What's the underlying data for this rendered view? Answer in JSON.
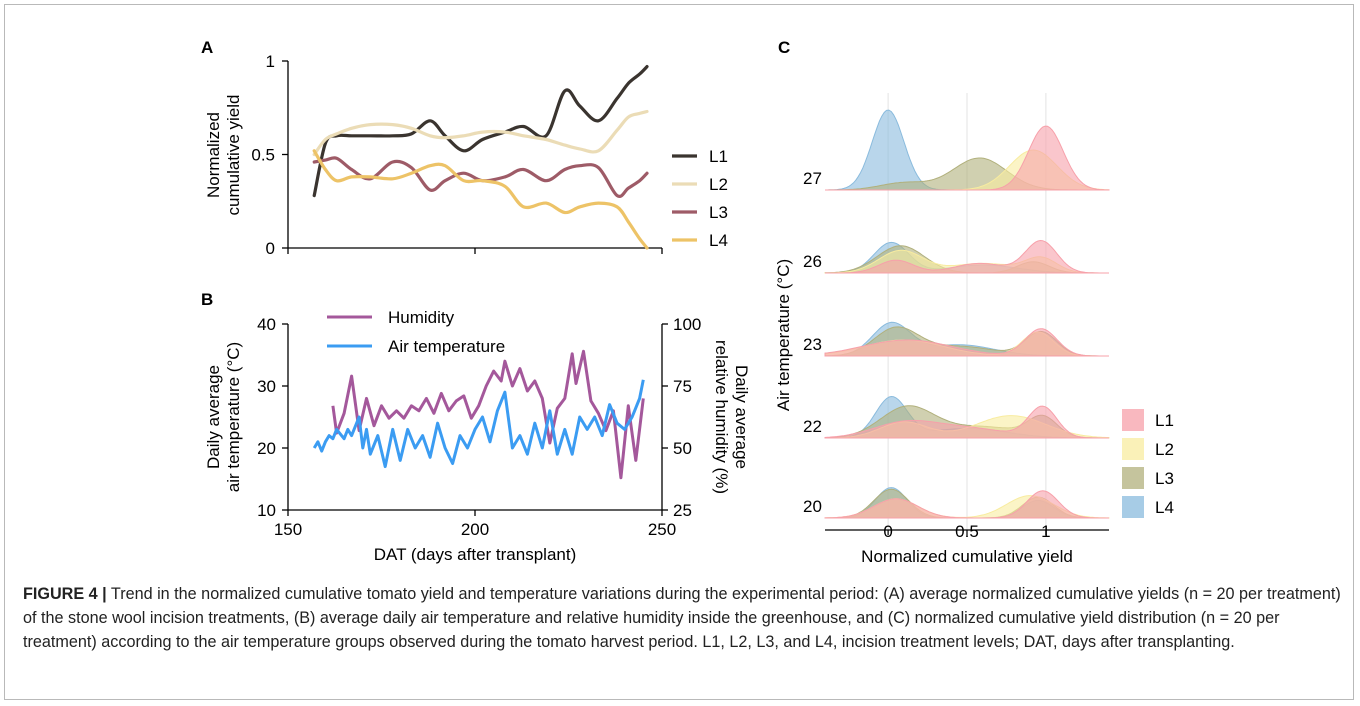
{
  "caption": {
    "figure_label": "FIGURE 4 |",
    "text": "Trend in the normalized cumulative tomato yield and temperature variations during the experimental period: (A) average normalized cumulative yields (n = 20 per treatment) of the stone wool incision treatments, (B) average daily air temperature and relative humidity inside the greenhouse, and (C) normalized cumulative yield distribution (n = 20 per treatment) according to the air temperature groups observed during the tomato harvest period. L1, L2, L3, and L4, incision treatment levels; DAT, days after transplanting."
  },
  "chart_data": [
    {
      "panel": "A",
      "type": "line",
      "ylabel": [
        "Normalized",
        "cumulative yield"
      ],
      "xlim": [
        150,
        250
      ],
      "ylim": [
        0,
        1
      ],
      "yticks": [
        "0",
        "0.5",
        "1"
      ],
      "x": [
        157,
        160,
        163,
        167,
        172,
        178,
        183,
        188,
        192,
        197,
        202,
        208,
        213,
        219,
        224,
        228,
        233,
        238,
        241,
        244,
        246
      ],
      "series": [
        {
          "name": "L1",
          "color": "#3a342f",
          "values": [
            0.28,
            0.56,
            0.6,
            0.6,
            0.6,
            0.6,
            0.61,
            0.68,
            0.6,
            0.52,
            0.58,
            0.62,
            0.65,
            0.6,
            0.84,
            0.76,
            0.68,
            0.8,
            0.88,
            0.93,
            0.97
          ]
        },
        {
          "name": "L2",
          "color": "#ebdcb6",
          "values": [
            0.5,
            0.58,
            0.61,
            0.64,
            0.66,
            0.66,
            0.64,
            0.6,
            0.59,
            0.6,
            0.62,
            0.62,
            0.6,
            0.58,
            0.55,
            0.53,
            0.52,
            0.63,
            0.7,
            0.72,
            0.73
          ]
        },
        {
          "name": "L3",
          "color": "#9e5b67",
          "values": [
            0.46,
            0.47,
            0.48,
            0.42,
            0.37,
            0.46,
            0.43,
            0.31,
            0.36,
            0.4,
            0.36,
            0.38,
            0.42,
            0.36,
            0.42,
            0.44,
            0.43,
            0.28,
            0.32,
            0.36,
            0.4
          ]
        },
        {
          "name": "L4",
          "color": "#edc367",
          "values": [
            0.52,
            0.42,
            0.36,
            0.38,
            0.38,
            0.37,
            0.4,
            0.44,
            0.44,
            0.36,
            0.36,
            0.33,
            0.22,
            0.24,
            0.19,
            0.22,
            0.24,
            0.22,
            0.14,
            0.05,
            0.0
          ]
        }
      ]
    },
    {
      "panel": "B",
      "type": "line",
      "xlabel": "DAT (days after transplant)",
      "ylabel": [
        "Daily average",
        "air temperature (°C)"
      ],
      "y2label": [
        "Daily average",
        "relative humidity (%)"
      ],
      "xlim": [
        150,
        250
      ],
      "ylim": [
        10,
        40
      ],
      "y2lim": [
        25,
        100
      ],
      "xticks": [
        "150",
        "200",
        "250"
      ],
      "yticks": [
        "10",
        "20",
        "30",
        "40"
      ],
      "y2ticks": [
        "25",
        "50",
        "75",
        "100"
      ],
      "series": [
        {
          "name": "Humidity",
          "axis": "right",
          "color": "#a4589b",
          "x": [
            162,
            163,
            165,
            167,
            169,
            171,
            173,
            175,
            177,
            179,
            181,
            183,
            185,
            187,
            189,
            191,
            193,
            195,
            197,
            199,
            201,
            203,
            205,
            207,
            208,
            210,
            212,
            214,
            216,
            218,
            220,
            222,
            224,
            226,
            227,
            229,
            231,
            233,
            235,
            237,
            239,
            241,
            243,
            245
          ],
          "values": [
            67,
            56,
            64,
            79,
            57,
            70,
            59,
            67,
            62,
            65,
            62,
            67,
            65,
            70,
            64,
            72,
            65,
            69,
            71,
            62,
            67,
            75,
            81,
            77,
            85,
            75,
            82,
            73,
            77,
            70,
            52,
            66,
            70,
            88,
            76,
            89,
            69,
            64,
            57,
            65,
            38,
            67,
            45,
            70
          ]
        },
        {
          "name": "Air temperature",
          "axis": "left",
          "color": "#3b9cf2",
          "x": [
            157,
            158,
            159,
            160,
            161,
            162,
            163,
            165,
            166,
            167,
            169,
            170,
            171,
            172,
            174,
            176,
            178,
            180,
            182,
            184,
            186,
            188,
            190,
            192,
            194,
            196,
            198,
            200,
            202,
            204,
            206,
            208,
            210,
            212,
            214,
            216,
            218,
            220,
            222,
            224,
            226,
            228,
            230,
            232,
            234,
            236,
            238,
            240,
            242,
            244,
            245
          ],
          "values": [
            20,
            21,
            19.5,
            21,
            22,
            21.5,
            23,
            21.5,
            23,
            22,
            25,
            20,
            23,
            19,
            22,
            17,
            23,
            18,
            23,
            20,
            22,
            18.5,
            24,
            20,
            17.5,
            22,
            20,
            23,
            25,
            21,
            26,
            29,
            20,
            22,
            19,
            24,
            20,
            26,
            19,
            23,
            19,
            25,
            23,
            25,
            22,
            27,
            24,
            23,
            25,
            28,
            31
          ]
        }
      ]
    },
    {
      "panel": "C",
      "type": "area",
      "xlabel": "Normalized cumulative yield",
      "ylabel": "Air temperature (°C)",
      "xlim": [
        -0.4,
        1.4
      ],
      "xticks": [
        "0",
        "0.5",
        "1"
      ],
      "legend": {
        "position": "bottom-right",
        "entries": [
          {
            "name": "L1",
            "color": "#f7a0aa"
          },
          {
            "name": "L2",
            "color": "#f8eca0"
          },
          {
            "name": "L3",
            "color": "#b1b07c"
          },
          {
            "name": "L4",
            "color": "#8abbdd"
          }
        ]
      },
      "groups": [
        {
          "temperature": "27",
          "series": {
            "L1": [
              [
                1.0,
                0.11,
                0.8
              ]
            ],
            "L2": [
              [
                0.92,
                0.15,
                0.5
              ]
            ],
            "L3": [
              [
                0.58,
                0.17,
                0.4
              ],
              [
                0.1,
                0.15,
                0.09
              ]
            ],
            "L4": [
              [
                0.0,
                0.1,
                1.0
              ]
            ]
          }
        },
        {
          "temperature": "26",
          "series": {
            "L1": [
              [
                0.97,
                0.1,
                0.4
              ],
              [
                0.58,
                0.16,
                0.12
              ],
              [
                0.05,
                0.11,
                0.16
              ]
            ],
            "L2": [
              [
                0.08,
                0.14,
                0.28
              ],
              [
                0.6,
                0.2,
                0.12
              ],
              [
                0.97,
                0.1,
                0.18
              ]
            ],
            "L3": [
              [
                0.08,
                0.15,
                0.34
              ],
              [
                0.92,
                0.1,
                0.14
              ]
            ],
            "L4": [
              [
                0.02,
                0.11,
                0.38
              ],
              [
                0.6,
                0.22,
                0.1
              ]
            ]
          }
        },
        {
          "temperature": "23",
          "series": {
            "L1": [
              [
                0.97,
                0.1,
                0.34
              ],
              [
                0.12,
                0.28,
                0.2
              ]
            ],
            "L2": [
              [
                0.95,
                0.1,
                0.3
              ],
              [
                0.1,
                0.25,
                0.2
              ]
            ],
            "L3": [
              [
                0.05,
                0.14,
                0.34
              ],
              [
                0.45,
                0.22,
                0.12
              ],
              [
                0.97,
                0.1,
                0.3
              ]
            ],
            "L4": [
              [
                0.02,
                0.12,
                0.4
              ],
              [
                0.45,
                0.22,
                0.14
              ]
            ]
          }
        },
        {
          "temperature": "22",
          "series": {
            "L1": [
              [
                0.98,
                0.09,
                0.38
              ],
              [
                0.1,
                0.2,
                0.18
              ],
              [
                0.5,
                0.25,
                0.12
              ]
            ],
            "L2": [
              [
                0.78,
                0.22,
                0.28
              ],
              [
                0.1,
                0.15,
                0.2
              ]
            ],
            "L3": [
              [
                0.12,
                0.17,
                0.38
              ],
              [
                0.6,
                0.25,
                0.14
              ],
              [
                0.98,
                0.09,
                0.24
              ]
            ],
            "L4": [
              [
                0.02,
                0.1,
                0.5
              ],
              [
                0.5,
                0.25,
                0.12
              ]
            ]
          }
        },
        {
          "temperature": "20",
          "series": {
            "L1": [
              [
                0.98,
                0.1,
                0.34
              ],
              [
                0.05,
                0.14,
                0.24
              ]
            ],
            "L2": [
              [
                0.9,
                0.15,
                0.28
              ],
              [
                0.05,
                0.14,
                0.24
              ]
            ],
            "L3": [
              [
                0.02,
                0.11,
                0.36
              ],
              [
                0.95,
                0.1,
                0.26
              ]
            ],
            "L4": [
              [
                0.02,
                0.1,
                0.38
              ],
              [
                0.95,
                0.1,
                0.22
              ]
            ]
          }
        }
      ]
    }
  ],
  "panel_labels": {
    "a": "A",
    "b": "B",
    "c": "C"
  }
}
